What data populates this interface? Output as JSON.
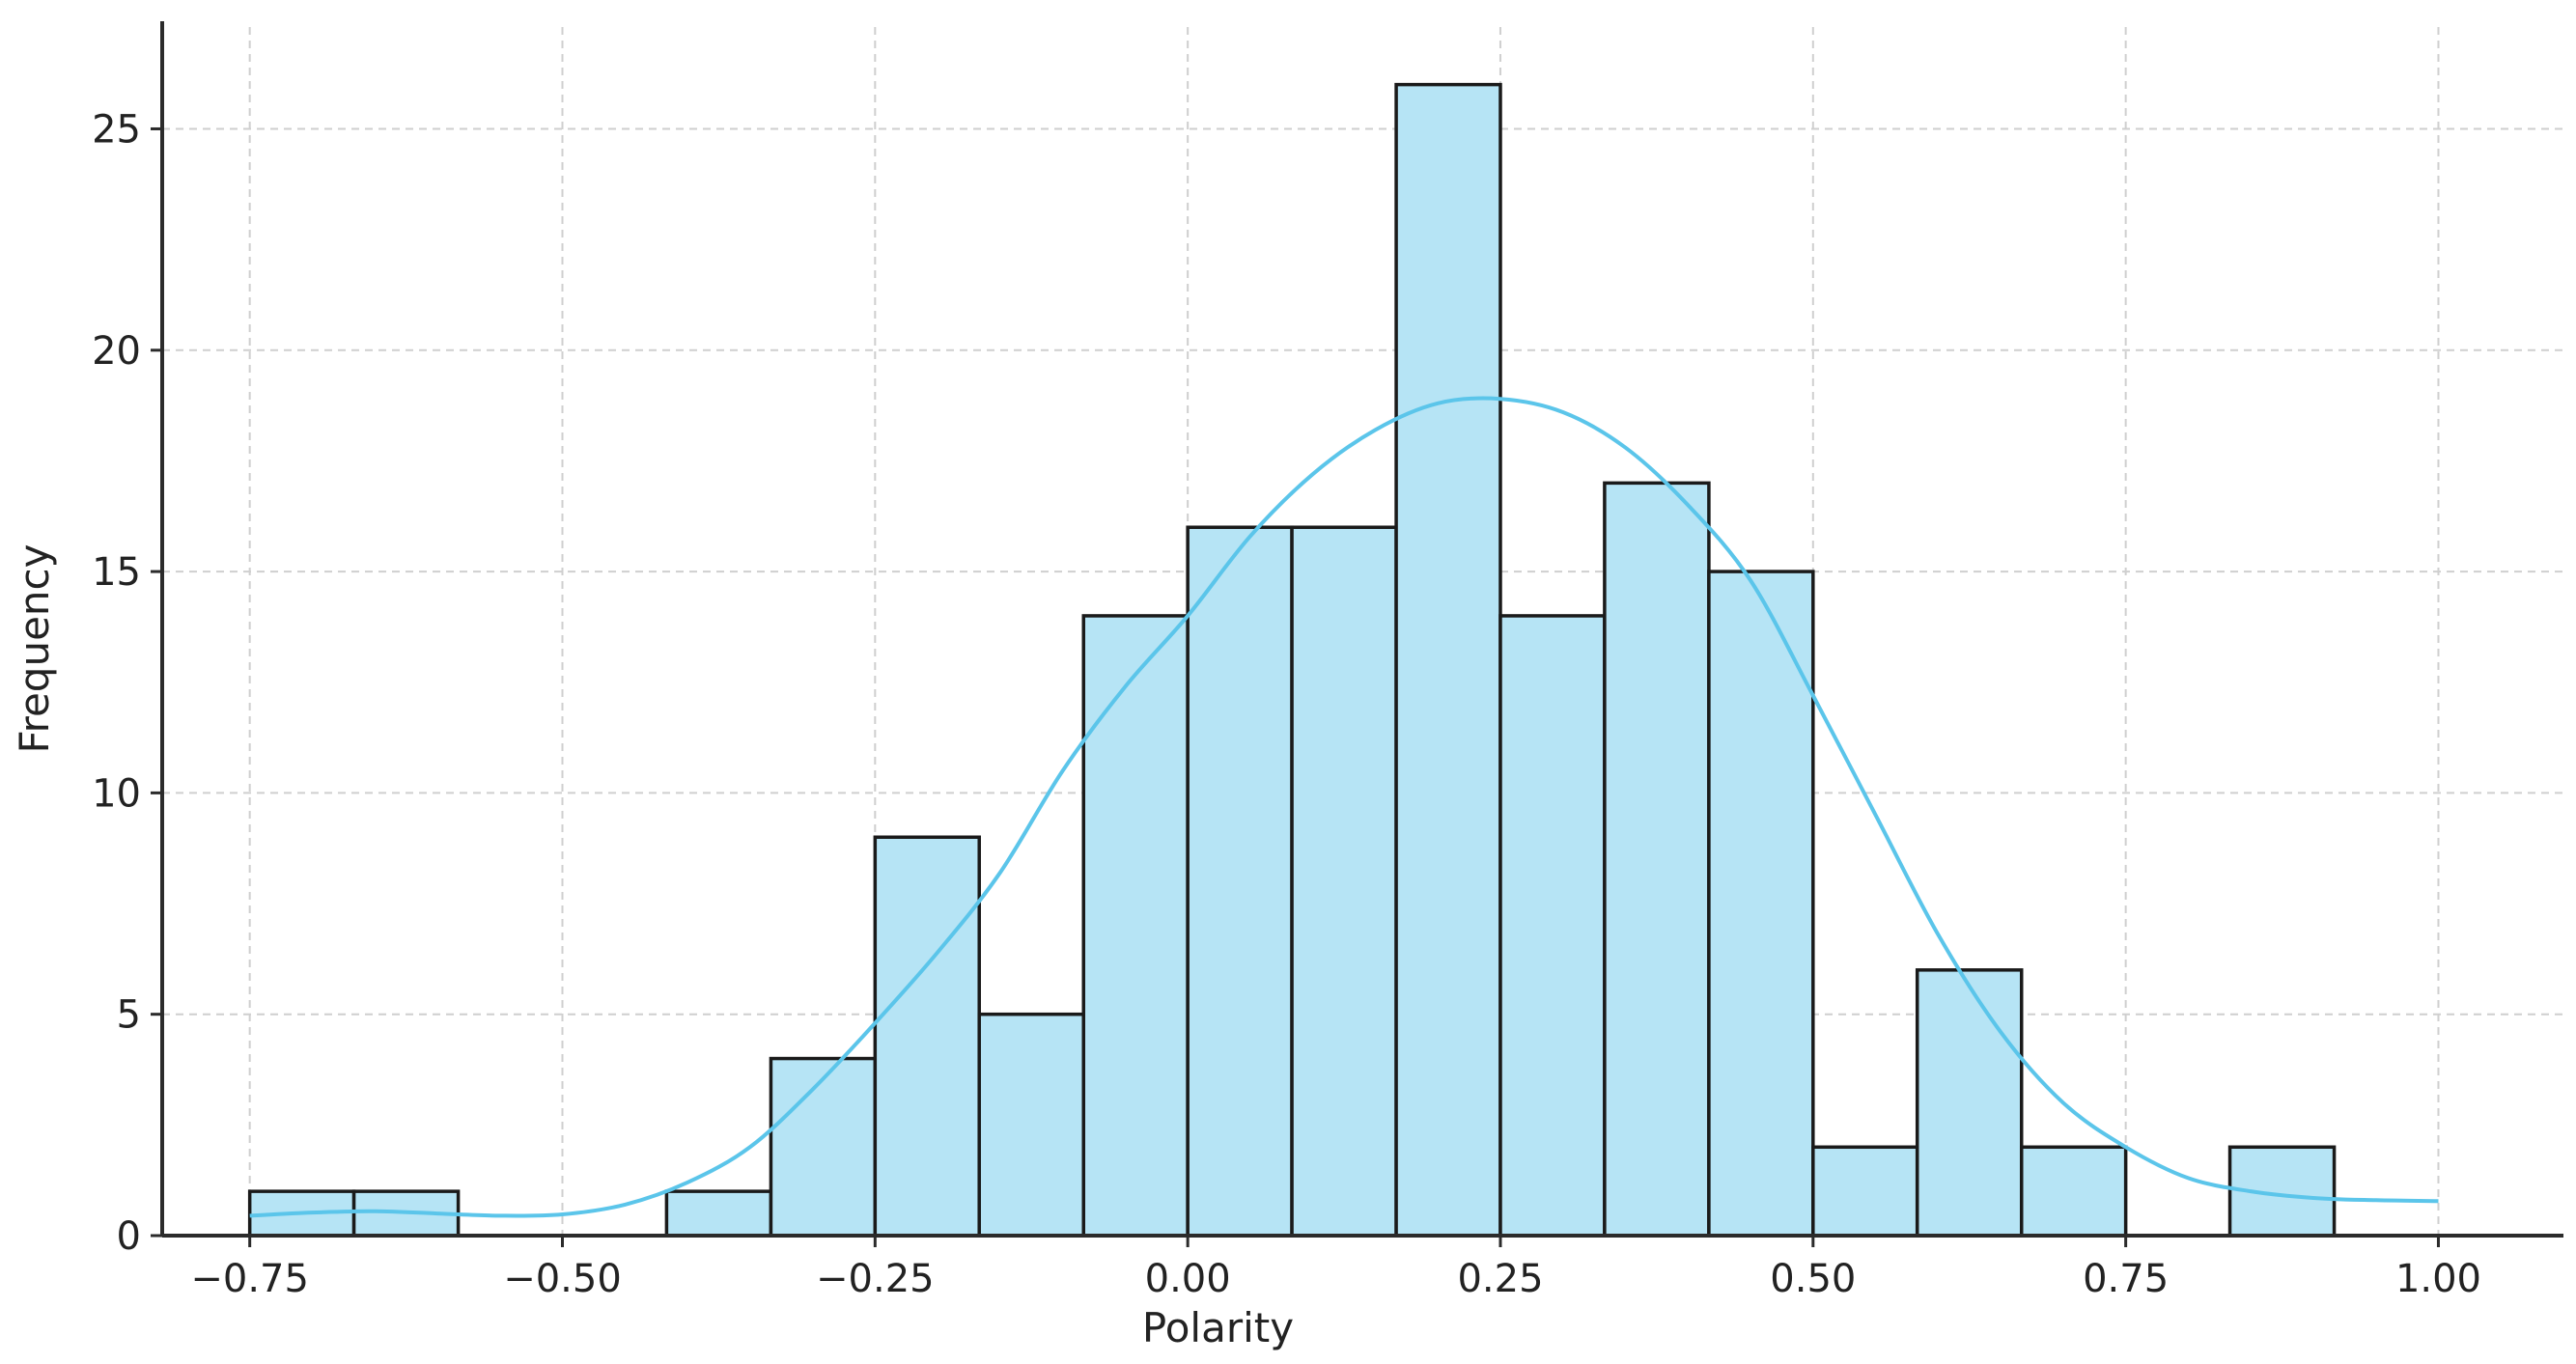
{
  "chart_data": {
    "type": "bar",
    "title": "",
    "xlabel": "Polarity",
    "ylabel": "Frequency",
    "xlim": [
      -0.82,
      1.1
    ],
    "ylim": [
      0,
      27.3
    ],
    "grid": true,
    "legend": "none",
    "x_ticks": [
      -0.75,
      -0.5,
      -0.25,
      0.0,
      0.25,
      0.5,
      0.75,
      1.0
    ],
    "x_tick_labels": [
      "−0.75",
      "−0.50",
      "−0.25",
      "0.00",
      "0.25",
      "0.50",
      "0.75",
      "1.00"
    ],
    "y_ticks": [
      0,
      5,
      10,
      15,
      20,
      25
    ],
    "y_tick_labels": [
      "0",
      "5",
      "10",
      "15",
      "20",
      "25"
    ],
    "bins": [
      {
        "x0": -0.75,
        "x1": -0.6667,
        "count": 1
      },
      {
        "x0": -0.6667,
        "x1": -0.5833,
        "count": 1
      },
      {
        "x0": -0.5833,
        "x1": -0.5,
        "count": 0
      },
      {
        "x0": -0.5,
        "x1": -0.4167,
        "count": 0
      },
      {
        "x0": -0.4167,
        "x1": -0.3333,
        "count": 1
      },
      {
        "x0": -0.3333,
        "x1": -0.25,
        "count": 4
      },
      {
        "x0": -0.25,
        "x1": -0.1667,
        "count": 9
      },
      {
        "x0": -0.1667,
        "x1": -0.0833,
        "count": 5
      },
      {
        "x0": -0.0833,
        "x1": 0.0,
        "count": 14
      },
      {
        "x0": 0.0,
        "x1": 0.0833,
        "count": 16
      },
      {
        "x0": 0.0833,
        "x1": 0.1667,
        "count": 16
      },
      {
        "x0": 0.1667,
        "x1": 0.25,
        "count": 26
      },
      {
        "x0": 0.25,
        "x1": 0.3333,
        "count": 14
      },
      {
        "x0": 0.3333,
        "x1": 0.4167,
        "count": 17
      },
      {
        "x0": 0.4167,
        "x1": 0.5,
        "count": 15
      },
      {
        "x0": 0.5,
        "x1": 0.5833,
        "count": 2
      },
      {
        "x0": 0.5833,
        "x1": 0.6667,
        "count": 6
      },
      {
        "x0": 0.6667,
        "x1": 0.75,
        "count": 2
      },
      {
        "x0": 0.75,
        "x1": 0.8333,
        "count": 0
      },
      {
        "x0": 0.8333,
        "x1": 0.9167,
        "count": 2
      }
    ],
    "kde": {
      "x": [
        -0.75,
        -0.7,
        -0.65,
        -0.6,
        -0.55,
        -0.5,
        -0.45,
        -0.4,
        -0.35,
        -0.3,
        -0.25,
        -0.2,
        -0.15,
        -0.1,
        -0.05,
        0.0,
        0.05,
        0.1,
        0.15,
        0.2,
        0.25,
        0.3,
        0.35,
        0.4,
        0.45,
        0.5,
        0.55,
        0.6,
        0.65,
        0.7,
        0.75,
        0.8,
        0.85,
        0.9,
        0.95,
        1.0
      ],
      "y": [
        0.45,
        0.52,
        0.55,
        0.5,
        0.45,
        0.48,
        0.7,
        1.2,
        2.0,
        3.3,
        4.8,
        6.4,
        8.2,
        10.5,
        12.4,
        14.0,
        15.8,
        17.2,
        18.2,
        18.8,
        18.9,
        18.6,
        17.8,
        16.5,
        14.8,
        12.2,
        9.5,
        6.8,
        4.6,
        3.0,
        2.0,
        1.3,
        1.0,
        0.85,
        0.8,
        0.78
      ]
    },
    "colors": {
      "bar_fill": "#b6e4f5",
      "bar_edge": "#1a1a1a",
      "kde_line": "#5bc5ea",
      "grid": "#cfcfcf",
      "axis": "#2b2b2b"
    }
  }
}
